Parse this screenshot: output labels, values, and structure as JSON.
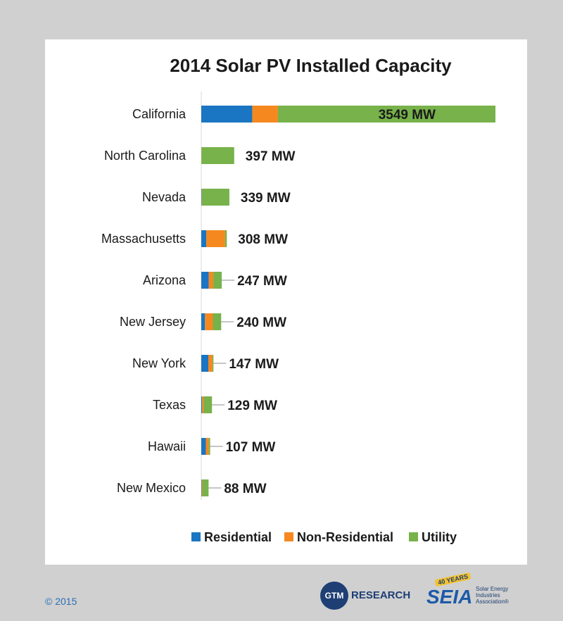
{
  "chart_data": {
    "type": "bar",
    "orientation": "horizontal",
    "stacked": true,
    "title": "2014 Solar PV Installed Capacity",
    "categories": [
      "California",
      "North Carolina",
      "Nevada",
      "Massachusetts",
      "Arizona",
      "New Jersey",
      "New York",
      "Texas",
      "Hawaii",
      "New Mexico"
    ],
    "totals": [
      3549,
      397,
      339,
      308,
      247,
      240,
      147,
      129,
      107,
      88
    ],
    "total_labels": [
      "3549 MW",
      "397 MW",
      "339 MW",
      "308 MW",
      "247 MW",
      "240 MW",
      "147 MW",
      "129 MW",
      "107 MW",
      "88 MW"
    ],
    "series": [
      {
        "name": "Residential",
        "color": "#1a75c2",
        "values": [
          615,
          0,
          5,
          60,
          90,
          45,
          85,
          10,
          55,
          5
        ]
      },
      {
        "name": "Non-Residential",
        "color": "#f5891f",
        "values": [
          310,
          2,
          4,
          228,
          55,
          95,
          50,
          19,
          35,
          8
        ]
      },
      {
        "name": "Utility",
        "color": "#77b24a",
        "values": [
          2624,
          395,
          330,
          20,
          102,
          100,
          12,
          100,
          17,
          75
        ]
      }
    ],
    "xlim": [
      0,
      3549
    ],
    "legend_position": "bottom",
    "grid": false
  },
  "footer": {
    "copyright": "© 2015",
    "gtm_badge": "GTM",
    "gtm_text": "RESEARCH",
    "seia_years": "40 YEARS",
    "seia_word": "SEIA",
    "seia_sub": "Solar Energy Industries Association®"
  }
}
